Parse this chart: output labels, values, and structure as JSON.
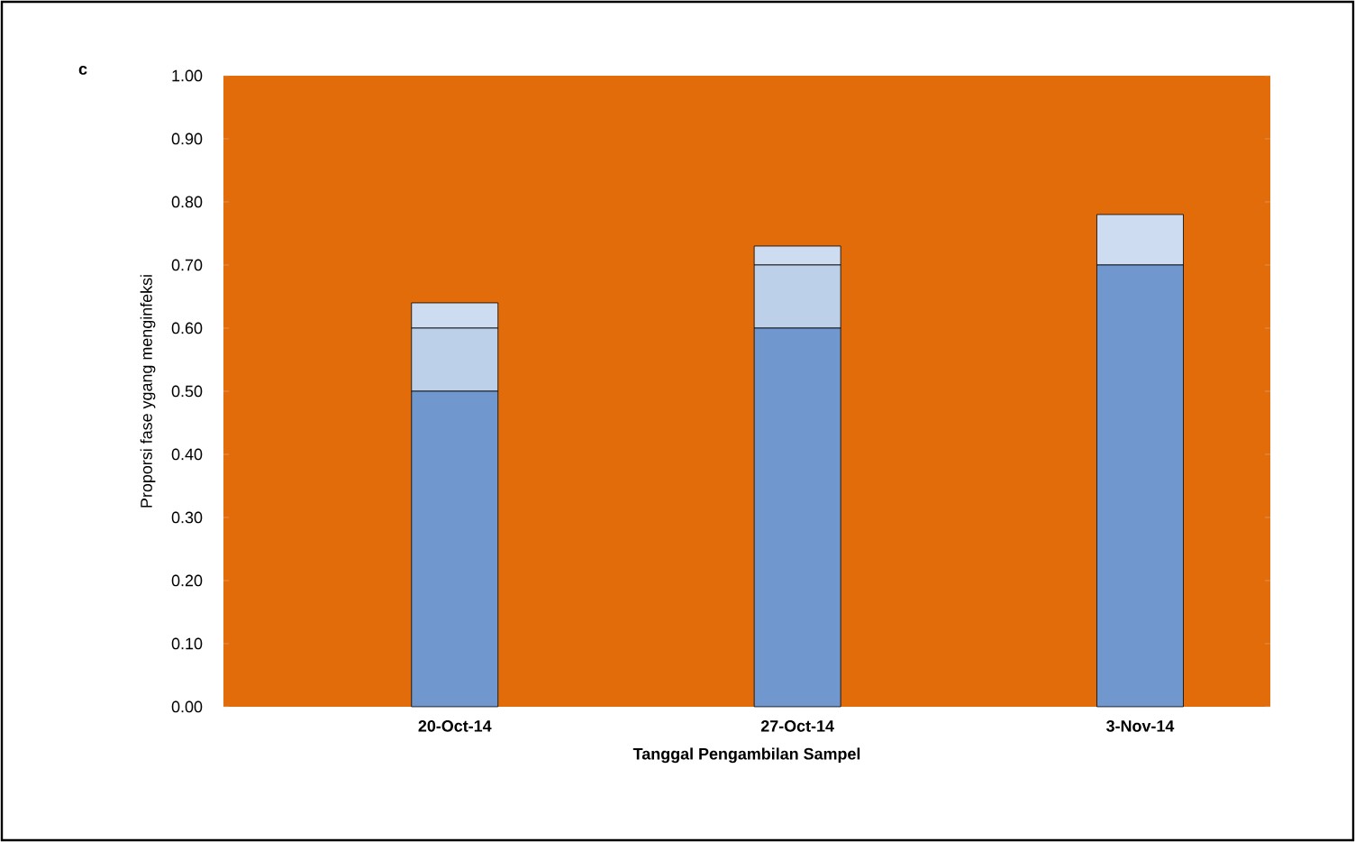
{
  "chart_data": {
    "type": "bar",
    "stacked": true,
    "xlabel": "Tanggal Pengambilan Sampel",
    "ylabel": "Proporsi fase ygang menginfeksi",
    "annotations": [
      "c"
    ],
    "categories": [
      "20-Oct-14",
      "27-Oct-14",
      "3-Nov-14"
    ],
    "series": [
      {
        "color": "#7098cf",
        "values": [
          0.5,
          0.6,
          0.7
        ]
      },
      {
        "color": "#bcd0ea",
        "values": [
          0.1,
          0.1,
          0
        ]
      },
      {
        "color": "#cddcf0",
        "values": [
          0.04,
          0.03,
          0.08
        ]
      }
    ],
    "ylim": [
      0,
      1
    ],
    "yticks": [
      {
        "value": 0,
        "label": "0.00"
      },
      {
        "value": 0.1,
        "label": "0.10"
      },
      {
        "value": 0.2,
        "label": "0.20"
      },
      {
        "value": 0.3,
        "label": "0.30"
      },
      {
        "value": 0.4,
        "label": "0.40"
      },
      {
        "value": 0.5,
        "label": "0.50"
      },
      {
        "value": 0.6,
        "label": "0.60"
      },
      {
        "value": 0.7,
        "label": "0.70"
      },
      {
        "value": 0.8,
        "label": "0.80"
      },
      {
        "value": 0.9,
        "label": "0.90"
      },
      {
        "value": 1,
        "label": "1.00"
      }
    ],
    "grid": false
  }
}
